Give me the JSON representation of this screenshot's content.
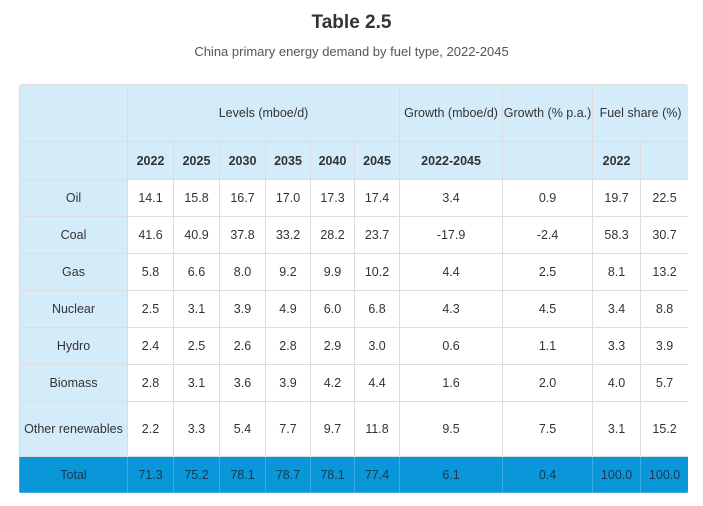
{
  "title": "Table 2.5",
  "subtitle": "China primary energy demand by fuel type, 2022-2045",
  "headers": {
    "levels": "Levels (mboe/d)",
    "growth_abs": "Growth (mboe/d)",
    "growth_pa": "Growth (% p.a.)",
    "fuel_share": "Fuel share (%)",
    "years": [
      "2022",
      "2025",
      "2030",
      "2035",
      "2040",
      "2045"
    ],
    "growth_period": "2022-2045",
    "share_year": "2022"
  },
  "rows": [
    {
      "fuel": "Oil",
      "values": [
        "14.1",
        "15.8",
        "16.7",
        "17.0",
        "17.3",
        "17.4"
      ],
      "growth": "3.4",
      "growth_pa": "0.9",
      "share_2022": "19.7",
      "share_2045": "22.5"
    },
    {
      "fuel": "Coal",
      "values": [
        "41.6",
        "40.9",
        "37.8",
        "33.2",
        "28.2",
        "23.7"
      ],
      "growth": "-17.9",
      "growth_pa": "-2.4",
      "share_2022": "58.3",
      "share_2045": "30.7"
    },
    {
      "fuel": "Gas",
      "values": [
        "5.8",
        "6.6",
        "8.0",
        "9.2",
        "9.9",
        "10.2"
      ],
      "growth": "4.4",
      "growth_pa": "2.5",
      "share_2022": "8.1",
      "share_2045": "13.2"
    },
    {
      "fuel": "Nuclear",
      "values": [
        "2.5",
        "3.1",
        "3.9",
        "4.9",
        "6.0",
        "6.8"
      ],
      "growth": "4.3",
      "growth_pa": "4.5",
      "share_2022": "3.4",
      "share_2045": "8.8"
    },
    {
      "fuel": "Hydro",
      "values": [
        "2.4",
        "2.5",
        "2.6",
        "2.8",
        "2.9",
        "3.0"
      ],
      "growth": "0.6",
      "growth_pa": "1.1",
      "share_2022": "3.3",
      "share_2045": "3.9"
    },
    {
      "fuel": "Biomass",
      "values": [
        "2.8",
        "3.1",
        "3.6",
        "3.9",
        "4.2",
        "4.4"
      ],
      "growth": "1.6",
      "growth_pa": "2.0",
      "share_2022": "4.0",
      "share_2045": "5.7"
    },
    {
      "fuel": "Other renewables",
      "values": [
        "2.2",
        "3.3",
        "5.4",
        "7.7",
        "9.7",
        "11.8"
      ],
      "growth": "9.5",
      "growth_pa": "7.5",
      "share_2022": "3.1",
      "share_2045": "15.2"
    }
  ],
  "total": {
    "fuel": "Total",
    "values": [
      "71.3",
      "75.2",
      "78.1",
      "78.7",
      "78.1",
      "77.4"
    ],
    "growth": "6.1",
    "growth_pa": "0.4",
    "share_2022": "100.0",
    "share_2045": "100.0"
  },
  "colors": {
    "header_bg": "#d4ebfa",
    "total_bg": "#0a97d9",
    "border": "#dcdcdc"
  }
}
